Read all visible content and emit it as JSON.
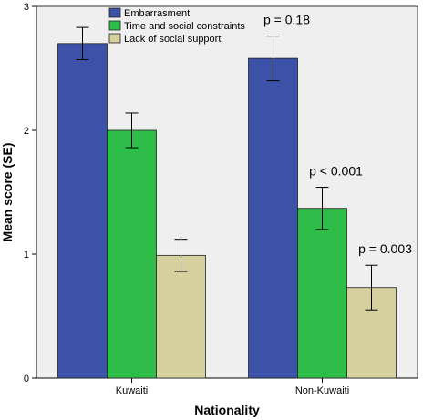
{
  "chart_data": {
    "type": "bar",
    "title": "",
    "xlabel": "Nationality",
    "ylabel": "Mean score (SE)",
    "ylim": [
      0,
      3
    ],
    "yticks": [
      "0",
      "1",
      "2",
      "3"
    ],
    "grid": false,
    "legend_position": "top-left",
    "categories": [
      "Kuwaiti",
      "Non-Kuwaiti"
    ],
    "series": [
      {
        "name": "Embarrasment",
        "color": "#3b52a8",
        "values": [
          2.7,
          2.58
        ],
        "se": [
          0.13,
          0.18
        ]
      },
      {
        "name": "Time and social constraints",
        "color": "#2fbd4a",
        "values": [
          2.0,
          1.37
        ],
        "se": [
          0.14,
          0.17
        ]
      },
      {
        "name": "Lack of social support",
        "color": "#d6d09e",
        "values": [
          0.99,
          0.73
        ],
        "se": [
          0.13,
          0.18
        ]
      }
    ],
    "annotations": [
      {
        "category": 1,
        "series": 0,
        "text": "p = 0.18"
      },
      {
        "category": 1,
        "series": 1,
        "text": "p < 0.001"
      },
      {
        "category": 1,
        "series": 2,
        "text": "p = 0.003"
      }
    ],
    "plot_background": "#efefef"
  }
}
